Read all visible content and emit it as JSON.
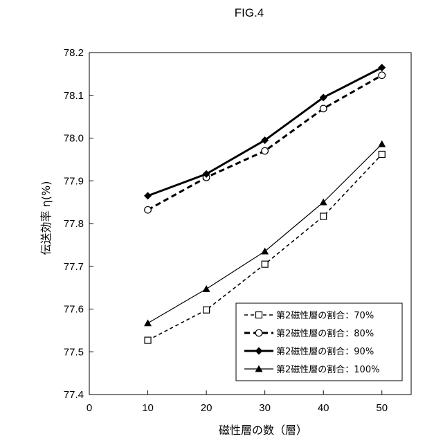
{
  "figure": {
    "title": "FIG.4"
  },
  "chart_data": {
    "type": "line",
    "title": "FIG.4",
    "xlabel": "磁性層の数（層）",
    "ylabel": "伝送効率 η(%)",
    "xlim": [
      0,
      55
    ],
    "ylim": [
      77.4,
      78.2
    ],
    "x_ticks": [
      "0",
      "10",
      "20",
      "30",
      "40",
      "50"
    ],
    "y_ticks": [
      "77.4",
      "77.5",
      "77.6",
      "77.7",
      "77.8",
      "77.9",
      "78.0",
      "78.1",
      "78.2"
    ],
    "legend_position": "lower-right",
    "grid": false,
    "x": [
      10,
      20,
      30,
      40,
      50
    ],
    "series": [
      {
        "name": "第2磁性層の割合：70%",
        "values": [
          77.527,
          77.598,
          77.705,
          77.817,
          77.962
        ],
        "line": "dashed-thin",
        "marker": "open-square"
      },
      {
        "name": "第2磁性層の割合：80%",
        "values": [
          77.832,
          77.908,
          77.97,
          78.069,
          78.147
        ],
        "line": "dashed-thick",
        "marker": "open-circle"
      },
      {
        "name": "第2磁性層の割合：90%",
        "values": [
          77.865,
          77.916,
          77.995,
          78.095,
          78.165
        ],
        "line": "solid-thick",
        "marker": "filled-diamond"
      },
      {
        "name": "第2磁性層の割合：100%",
        "values": [
          77.567,
          77.647,
          77.735,
          77.85,
          77.986
        ],
        "line": "solid-thin",
        "marker": "filled-triangle"
      }
    ],
    "colors": {
      "line": "#000000",
      "background": "#ffffff"
    }
  }
}
